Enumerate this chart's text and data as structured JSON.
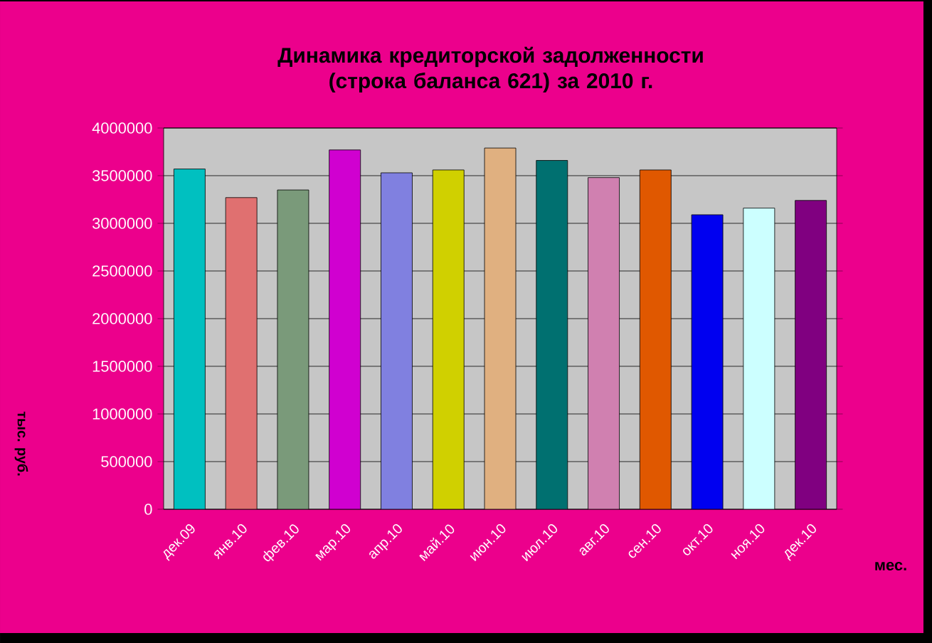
{
  "chart_data": {
    "type": "bar",
    "title": "Динамика кредиторской задолженности (строка баланса 621) за 2010 г.",
    "xlabel": "мес.",
    "ylabel": "тыс. руб.",
    "categories": [
      "дек.09",
      "янв.10",
      "фев.10",
      "мар.10",
      "апр.10",
      "май.10",
      "июн.10",
      "июл.10",
      "авг.10",
      "сен.10",
      "окт.10",
      "ноя.10",
      "дек.10"
    ],
    "values": [
      3570000,
      3270000,
      3350000,
      3770000,
      3530000,
      3560000,
      3790000,
      3660000,
      3480000,
      3560000,
      3090000,
      3160000,
      3240000
    ],
    "colors": [
      "#00c0c0",
      "#e07070",
      "#7a9a7a",
      "#d000d0",
      "#8080e0",
      "#d0d000",
      "#e0b080",
      "#007070",
      "#d080b0",
      "#e05800",
      "#0000f0",
      "#ccffff",
      "#800080"
    ],
    "ylim": [
      0,
      4000000
    ],
    "yticks": [
      0,
      500000,
      1000000,
      1500000,
      2000000,
      2500000,
      3000000,
      3500000,
      4000000
    ],
    "grid": "y"
  }
}
